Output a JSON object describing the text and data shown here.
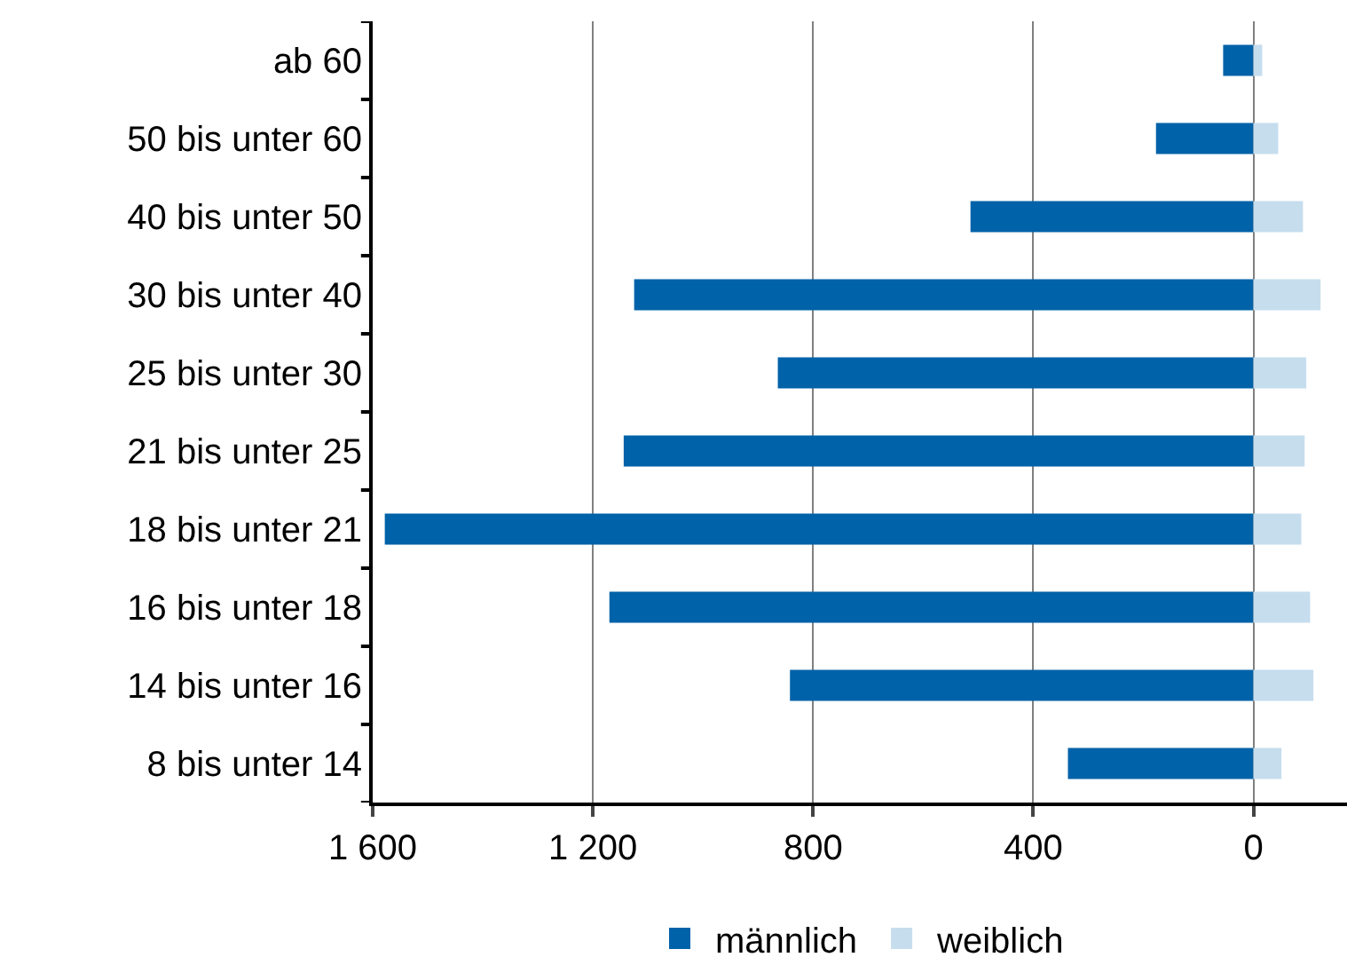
{
  "chart_data": {
    "type": "bar",
    "orientation": "horizontal",
    "categories": [
      "ab 60",
      "50 bis unter 60",
      "40 bis unter 50",
      "30 bis unter 40",
      "25 bis unter 30",
      "21 bis unter 25",
      "18 bis unter 21",
      "16 bis unter 18",
      "14 bis unter 16",
      "8 bis unter 14"
    ],
    "series": [
      {
        "name": "männlich",
        "color": "#0062a8",
        "values": [
          55,
          177,
          514,
          1125,
          864,
          1144,
          1578,
          1170,
          842,
          337
        ]
      },
      {
        "name": "weiblich",
        "color": "#c6ddee",
        "values": [
          -16,
          -45,
          -90,
          -122,
          -96,
          -93,
          -87,
          -103,
          -109,
          -51
        ]
      }
    ],
    "xlim": [
      1600,
      -170
    ],
    "xticks": [
      {
        "value": 1600,
        "label": "1 600"
      },
      {
        "value": 1200,
        "label": "1 200"
      },
      800,
      400,
      0
    ],
    "grid": "x",
    "legend": "bottom",
    "stacked": true
  }
}
